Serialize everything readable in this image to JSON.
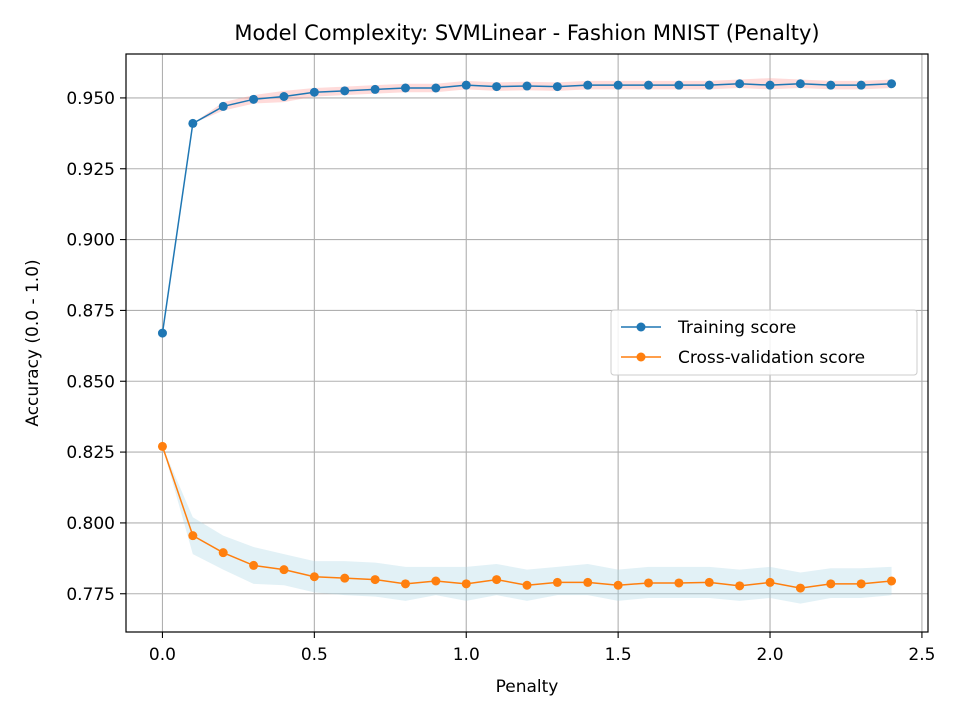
{
  "chart_data": {
    "type": "line",
    "title": "Model Complexity: SVMLinear - Fashion MNIST (Penalty)",
    "xlabel": "Penalty",
    "ylabel": "Accuracy (0.0 - 1.0)",
    "xlim": [
      -0.12,
      2.52
    ],
    "ylim": [
      0.7615,
      0.9655
    ],
    "xticks": [
      0.0,
      0.5,
      1.0,
      1.5,
      2.0,
      2.5
    ],
    "xtick_labels": [
      "0.0",
      "0.5",
      "1.0",
      "1.5",
      "2.0",
      "2.5"
    ],
    "yticks": [
      0.775,
      0.8,
      0.825,
      0.85,
      0.875,
      0.9,
      0.925,
      0.95
    ],
    "ytick_labels": [
      "0.775",
      "0.800",
      "0.825",
      "0.850",
      "0.875",
      "0.900",
      "0.925",
      "0.950"
    ],
    "grid": true,
    "legend_position": "center-right",
    "x": [
      0.0,
      0.1,
      0.2,
      0.3,
      0.4,
      0.5,
      0.6,
      0.7,
      0.8,
      0.9,
      1.0,
      1.1,
      1.2,
      1.3,
      1.4,
      1.5,
      1.6,
      1.7,
      1.8,
      1.9,
      2.0,
      2.1,
      2.2,
      2.3,
      2.4
    ],
    "series": [
      {
        "name": "Training score",
        "color": "#1f77b4",
        "band_color": "#ff9896",
        "values": [
          0.867,
          0.941,
          0.947,
          0.9495,
          0.9505,
          0.952,
          0.9525,
          0.953,
          0.9535,
          0.9535,
          0.9545,
          0.954,
          0.9542,
          0.954,
          0.9545,
          0.9545,
          0.9545,
          0.9545,
          0.9545,
          0.955,
          0.9545,
          0.955,
          0.9545,
          0.9545,
          0.955
        ],
        "band_lower": [
          0.867,
          0.941,
          0.9455,
          0.948,
          0.9485,
          0.9505,
          0.951,
          0.9515,
          0.952,
          0.952,
          0.953,
          0.9525,
          0.9527,
          0.9525,
          0.953,
          0.953,
          0.953,
          0.953,
          0.953,
          0.9535,
          0.953,
          0.9535,
          0.953,
          0.953,
          0.9535
        ],
        "band_upper": [
          0.867,
          0.941,
          0.9485,
          0.951,
          0.9525,
          0.9535,
          0.954,
          0.9545,
          0.955,
          0.955,
          0.956,
          0.9555,
          0.9557,
          0.9555,
          0.956,
          0.956,
          0.956,
          0.956,
          0.956,
          0.9565,
          0.957,
          0.9565,
          0.956,
          0.956,
          0.9565
        ]
      },
      {
        "name": "Cross-validation score",
        "color": "#ff7f0e",
        "band_color": "#add8e6",
        "values": [
          0.827,
          0.7955,
          0.7895,
          0.785,
          0.7835,
          0.781,
          0.7805,
          0.78,
          0.7785,
          0.7795,
          0.7785,
          0.78,
          0.778,
          0.779,
          0.779,
          0.778,
          0.7788,
          0.7788,
          0.779,
          0.7778,
          0.779,
          0.777,
          0.7785,
          0.7785,
          0.7795
        ],
        "band_lower": [
          0.827,
          0.789,
          0.7835,
          0.7785,
          0.778,
          0.7755,
          0.7745,
          0.774,
          0.7725,
          0.7745,
          0.7725,
          0.7745,
          0.7725,
          0.7745,
          0.7745,
          0.7725,
          0.7735,
          0.7735,
          0.7735,
          0.7725,
          0.7735,
          0.7715,
          0.7735,
          0.7735,
          0.7745
        ],
        "band_upper": [
          0.827,
          0.802,
          0.7955,
          0.7915,
          0.789,
          0.7865,
          0.7865,
          0.786,
          0.7845,
          0.7845,
          0.7845,
          0.7855,
          0.7835,
          0.7845,
          0.7855,
          0.7835,
          0.7845,
          0.7845,
          0.7845,
          0.7835,
          0.7845,
          0.7825,
          0.784,
          0.784,
          0.7845
        ]
      }
    ]
  }
}
